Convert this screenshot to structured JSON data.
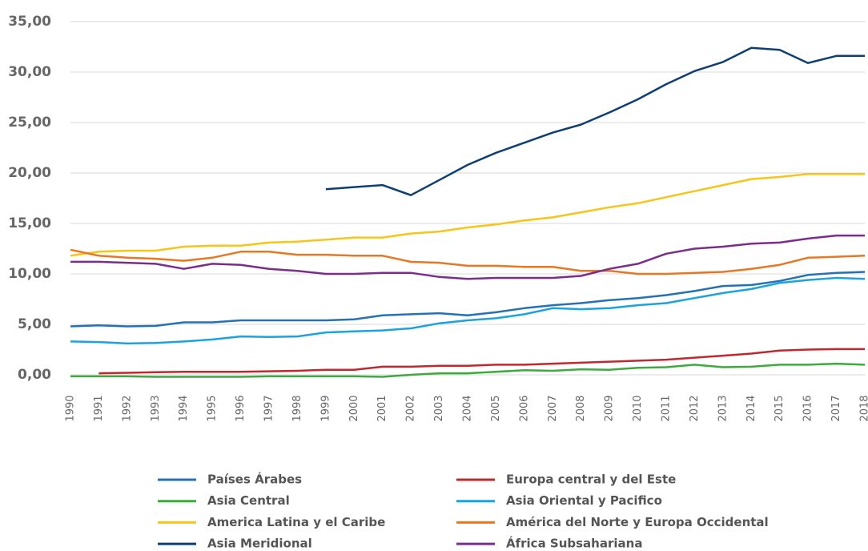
{
  "chart_data": {
    "type": "line",
    "x": [
      1990,
      1991,
      1992,
      1993,
      1994,
      1995,
      1996,
      1997,
      1998,
      1999,
      2000,
      2001,
      2002,
      2003,
      2004,
      2005,
      2006,
      2007,
      2008,
      2009,
      2010,
      2011,
      2012,
      2013,
      2014,
      2015,
      2016,
      2017,
      2018
    ],
    "xlim": [
      1990,
      2018
    ],
    "xticks": [
      1990,
      1991,
      1992,
      1993,
      1994,
      1995,
      1996,
      1997,
      1998,
      1999,
      2000,
      2001,
      2002,
      2003,
      2004,
      2005,
      2006,
      2007,
      2008,
      2009,
      2010,
      2011,
      2012,
      2013,
      2014,
      2015,
      2016,
      2017,
      2018
    ],
    "ylim": [
      -0.8,
      35
    ],
    "yticks": [
      {
        "value": 0,
        "label": "0,00"
      },
      {
        "value": 5,
        "label": "5,00"
      },
      {
        "value": 10,
        "label": "10,00"
      },
      {
        "value": 15,
        "label": "15,00"
      },
      {
        "value": 20,
        "label": "20,00"
      },
      {
        "value": 25,
        "label": "25,00"
      },
      {
        "value": 30,
        "label": "30,00"
      },
      {
        "value": 35,
        "label": "35,00"
      }
    ],
    "grid": true,
    "series": [
      {
        "name": "Países Árabes",
        "color": "#2471b5",
        "values": [
          4.8,
          4.9,
          4.8,
          4.85,
          5.2,
          5.2,
          5.4,
          5.4,
          5.4,
          5.4,
          5.5,
          5.9,
          6.0,
          6.1,
          5.9,
          6.2,
          6.6,
          6.9,
          7.1,
          7.4,
          7.6,
          7.9,
          8.3,
          8.8,
          8.9,
          9.3,
          9.9,
          10.1,
          10.2
        ]
      },
      {
        "name": "Europa central y del Este",
        "color": "#c0282d",
        "values": [
          null,
          0.15,
          0.2,
          0.25,
          0.3,
          0.3,
          0.3,
          0.35,
          0.4,
          0.5,
          0.5,
          0.8,
          0.8,
          0.9,
          0.9,
          1.0,
          1.0,
          1.1,
          1.2,
          1.3,
          1.4,
          1.5,
          1.7,
          1.9,
          2.1,
          2.4,
          2.5,
          2.55,
          2.55
        ]
      },
      {
        "name": "Asia Central",
        "color": "#3daa3d",
        "values": [
          -0.15,
          -0.15,
          -0.15,
          -0.2,
          -0.2,
          -0.2,
          -0.2,
          -0.15,
          -0.15,
          -0.15,
          -0.15,
          -0.2,
          0.0,
          0.15,
          0.15,
          0.3,
          0.45,
          0.4,
          0.55,
          0.5,
          0.7,
          0.75,
          1.0,
          0.75,
          0.8,
          1.0,
          1.0,
          1.1,
          1.0
        ]
      },
      {
        "name": "Asia Oriental y Pacifico",
        "color": "#1aa3dd",
        "values": [
          3.3,
          3.25,
          3.1,
          3.15,
          3.3,
          3.5,
          3.8,
          3.75,
          3.8,
          4.2,
          4.3,
          4.4,
          4.6,
          5.1,
          5.4,
          5.6,
          6.0,
          6.6,
          6.5,
          6.6,
          6.9,
          7.1,
          7.6,
          8.1,
          8.5,
          9.1,
          9.4,
          9.6,
          9.5
        ]
      },
      {
        "name": "America Latina y el Caribe",
        "color": "#f5c518",
        "values": [
          11.8,
          12.2,
          12.3,
          12.3,
          12.7,
          12.8,
          12.8,
          13.1,
          13.2,
          13.4,
          13.6,
          13.6,
          14.0,
          14.2,
          14.6,
          14.9,
          15.3,
          15.6,
          16.1,
          16.6,
          17.0,
          17.6,
          18.2,
          18.8,
          19.4,
          19.6,
          19.9,
          19.9,
          19.9
        ]
      },
      {
        "name": "América del Norte y Europa Occidental",
        "color": "#e87722",
        "values": [
          12.4,
          11.8,
          11.6,
          11.5,
          11.3,
          11.6,
          12.2,
          12.2,
          11.9,
          11.9,
          11.8,
          11.8,
          11.2,
          11.1,
          10.8,
          10.8,
          10.7,
          10.7,
          10.3,
          10.3,
          10.0,
          10.0,
          10.1,
          10.2,
          10.5,
          10.9,
          11.6,
          11.7,
          11.8
        ]
      },
      {
        "name": "Asia Meridional",
        "color": "#0f3e73",
        "values": [
          null,
          null,
          null,
          null,
          null,
          null,
          null,
          null,
          null,
          18.4,
          18.6,
          18.8,
          17.8,
          19.3,
          20.8,
          22.0,
          23.0,
          24.0,
          24.8,
          26.0,
          27.3,
          28.8,
          30.1,
          31.0,
          32.4,
          32.2,
          30.9,
          31.6,
          31.6
        ]
      },
      {
        "name": "África Subsahariana",
        "color": "#7b2d8b",
        "values": [
          11.2,
          11.2,
          11.1,
          11.0,
          10.5,
          11.0,
          10.9,
          10.5,
          10.3,
          10.0,
          10.0,
          10.1,
          10.1,
          9.7,
          9.5,
          9.6,
          9.6,
          9.6,
          9.8,
          10.5,
          11.0,
          12.0,
          12.5,
          12.7,
          13.0,
          13.1,
          13.5,
          13.8,
          13.8
        ]
      }
    ]
  }
}
